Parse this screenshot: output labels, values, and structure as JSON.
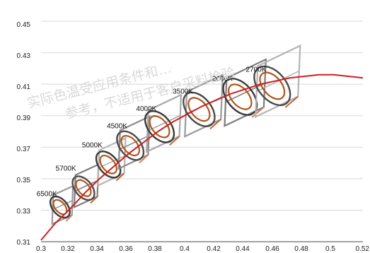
{
  "chart_data": {
    "type": "line",
    "title": "",
    "xlabel": "",
    "ylabel": "",
    "xlim": [
      0.3,
      0.52
    ],
    "ylim": [
      0.31,
      0.45
    ],
    "grid": "horizontal",
    "x_ticks": [
      "0.3",
      "0.32",
      "0.34",
      "0.36",
      "0.38",
      "0.4",
      "0.42",
      "0.44",
      "0.46",
      "0.48",
      "0.5",
      "0.52"
    ],
    "y_ticks": [
      "0.31",
      "0.33",
      "0.35",
      "0.37",
      "0.39",
      "0.41",
      "0.43",
      "0.45"
    ],
    "series": [
      {
        "color": "#cc1f1f",
        "x": [
          0.3,
          0.31,
          0.32,
          0.33,
          0.34,
          0.35,
          0.36,
          0.37,
          0.38,
          0.39,
          0.4,
          0.41,
          0.42,
          0.43,
          0.44,
          0.45,
          0.46,
          0.47,
          0.48,
          0.49,
          0.5,
          0.51,
          0.52
        ],
        "y": [
          0.311,
          0.322,
          0.331,
          0.341,
          0.35,
          0.358,
          0.366,
          0.373,
          0.38,
          0.386,
          0.391,
          0.396,
          0.4,
          0.404,
          0.407,
          0.41,
          0.412,
          0.414,
          0.415,
          0.416,
          0.416,
          0.415,
          0.414
        ]
      }
    ],
    "cct_regions": [
      {
        "label": "6500K",
        "center": [
          0.313,
          0.332
        ],
        "label_at": [
          0.297,
          0.339
        ]
      },
      {
        "label": "5700K",
        "center": [
          0.329,
          0.344
        ],
        "label_at": [
          0.31,
          0.355
        ]
      },
      {
        "label": "5000K",
        "center": [
          0.346,
          0.359
        ],
        "label_at": [
          0.328,
          0.37
        ]
      },
      {
        "label": "4500K",
        "center": [
          0.361,
          0.371
        ],
        "label_at": [
          0.345,
          0.382
        ]
      },
      {
        "label": "4000K",
        "center": [
          0.381,
          0.383
        ],
        "label_at": [
          0.365,
          0.393
        ]
      },
      {
        "label": "3500K",
        "center": [
          0.408,
          0.394
        ],
        "label_at": [
          0.39,
          0.404
        ]
      },
      {
        "label": "3000K",
        "center": [
          0.436,
          0.402
        ],
        "label_at": [
          0.417,
          0.412
        ]
      },
      {
        "label": "2700K",
        "center": [
          0.458,
          0.409
        ],
        "label_at": [
          0.44,
          0.418
        ]
      }
    ]
  },
  "watermark": {
    "line1": "实际色温受应用条件和…",
    "line2": "参考，不适用于客户采料检验"
  }
}
